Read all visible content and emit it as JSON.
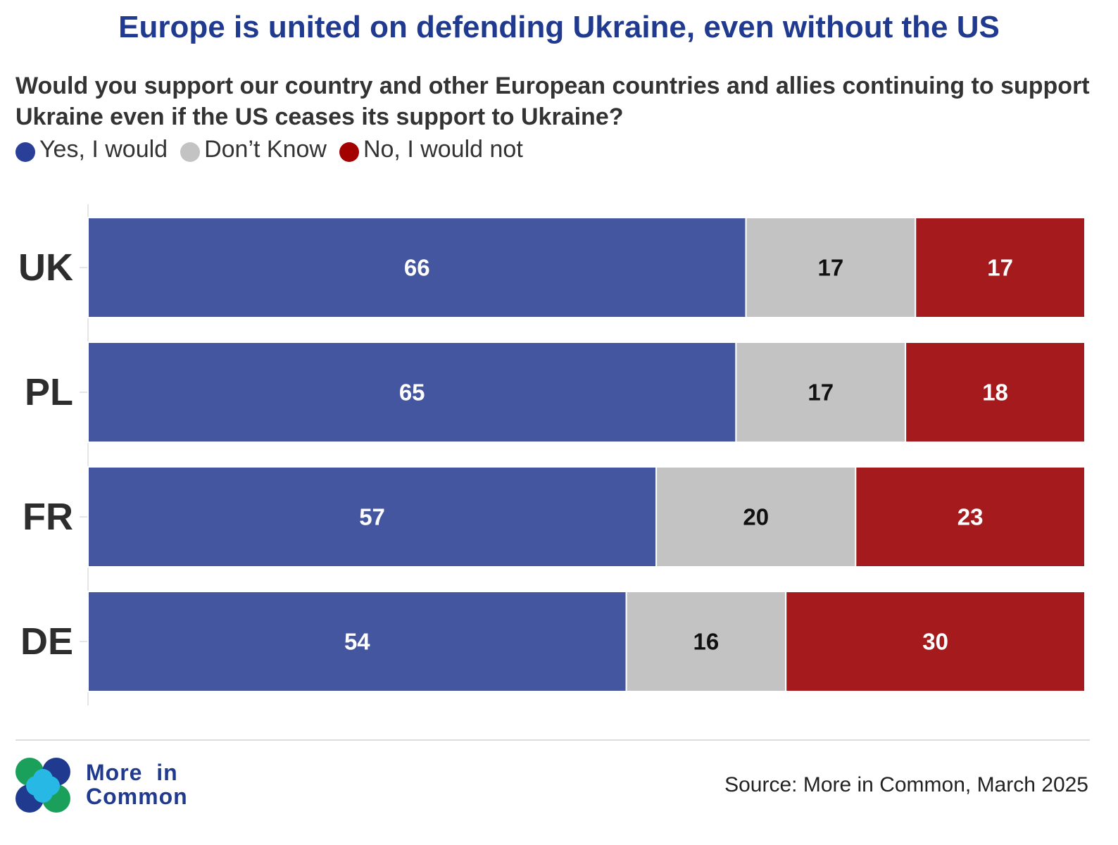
{
  "header": {
    "title": "Europe is united on defending Ukraine, even without the US",
    "subtitle": "Would you support our country and other European countries and allies continuing to support Ukraine even if the US ceases its support to Ukraine?"
  },
  "legend": [
    {
      "label": "Yes, I would",
      "color": "#43569f"
    },
    {
      "label": "Don’t Know",
      "color": "#c3c3c3"
    },
    {
      "label": "No, I would not",
      "color": "#a51a1c"
    }
  ],
  "chart_data": {
    "type": "bar",
    "orientation": "horizontal",
    "stacked": true,
    "categories": [
      "UK",
      "PL",
      "FR",
      "DE"
    ],
    "series": [
      {
        "name": "Yes, I would",
        "values": [
          66,
          65,
          57,
          54
        ],
        "color": "#43569f",
        "label_color": "#ffffff"
      },
      {
        "name": "Don’t Know",
        "values": [
          17,
          17,
          20,
          16
        ],
        "color": "#c3c3c3",
        "label_color": "#111111"
      },
      {
        "name": "No, I would not",
        "values": [
          17,
          18,
          23,
          30
        ],
        "color": "#a51a1c",
        "label_color": "#ffffff"
      }
    ],
    "xlim": [
      0,
      100
    ],
    "grid": false,
    "legend_position": "top-left"
  },
  "footer": {
    "logo_line1": "More  in",
    "logo_line2": "Common",
    "source": "Source: More in Common, March 2025"
  }
}
